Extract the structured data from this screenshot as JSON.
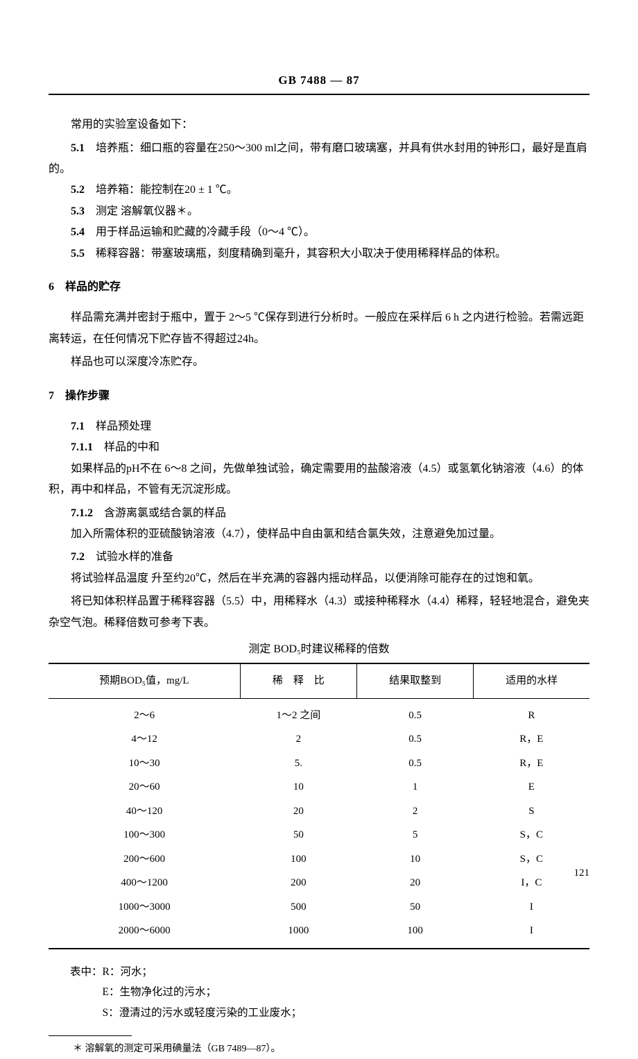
{
  "header": {
    "title": "GB 7488 — 87"
  },
  "intro": "常用的实验室设备如下：",
  "items5": {
    "i1_num": "5.1",
    "i1": "培养瓶：细口瓶的容量在250～300 ml之间，带有磨口玻璃塞，并具有供水封用的钟形口，最好是直肩的。",
    "i2_num": "5.2",
    "i2": "培养箱：能控制在20 ± 1 ℃。",
    "i3_num": "5.3",
    "i3": "测定 溶解氧仪器＊。",
    "i4_num": "5.4",
    "i4": "用于样品运输和贮藏的冷藏手段（0～4 ℃）。",
    "i5_num": "5.5",
    "i5": "稀释容器：带塞玻璃瓶，刻度精确到毫升，其容积大小取决于使用稀释样品的体积。"
  },
  "section6": {
    "heading": "6　样品的贮存",
    "p1": "样品需充满并密封于瓶中，置于 2～5 ℃保存到进行分析时。一般应在采样后 6 h 之内进行检验。若需远距离转运，在任何情况下贮存皆不得超过24h。",
    "p2": "样品也可以深度冷冻贮存。"
  },
  "section7": {
    "heading": "7　操作步骤",
    "s71_num": "7.1",
    "s71": "样品预处理",
    "s711_num": "7.1.1",
    "s711": "样品的中和",
    "s711_p": "如果样品的pH不在 6～8 之间，先做单独试验，确定需要用的盐酸溶液（4.5）或氢氧化钠溶液（4.6）的体积，再中和样品，不管有无沉淀形成。",
    "s712_num": "7.1.2",
    "s712": "含游离氯或结合氯的样品",
    "s712_p": "加入所需体积的亚硫酸钠溶液（4.7），使样品中自由氯和结合氯失效，注意避免加过量。",
    "s72_num": "7.2",
    "s72": "试验水样的准备",
    "s72_p1": "将试验样品温度 升至约20℃，然后在半充满的容器内摇动样品，以便消除可能存在的过饱和氧。",
    "s72_p2": "将已知体积样品置于稀释容器（5.5）中，用稀释水（4.3）或接种稀释水（4.4）稀释，轻轻地混合，避免夹杂空气泡。稀释倍数可参考下表。"
  },
  "table": {
    "title": "测定 BOD₅时建议稀释的倍数",
    "headers": [
      "预期BOD₅值，mg/L",
      "稀　释　比",
      "结果取整到",
      "适用的水样"
    ],
    "rows": [
      [
        "2～6",
        "1～2 之间",
        "0.5",
        "R"
      ],
      [
        "4～12",
        "2",
        "0.5",
        "R，E"
      ],
      [
        "10～30",
        "5.",
        "0.5",
        "R，E"
      ],
      [
        "20～60",
        "10",
        "1",
        "E"
      ],
      [
        "40～120",
        "20",
        "2",
        "S"
      ],
      [
        "100～300",
        "50",
        "5",
        "S，C"
      ],
      [
        "200～600",
        "100",
        "10",
        "S，C"
      ],
      [
        "400～1200",
        "200",
        "20",
        "I，C"
      ],
      [
        "1000～3000",
        "500",
        "50",
        "I"
      ],
      [
        "2000～6000",
        "1000",
        "100",
        "I"
      ]
    ]
  },
  "legend": {
    "intro": "表中：R：河水；",
    "e": "E：生物净化过的污水；",
    "s": "S：澄清过的污水或轻度污染的工业废水；"
  },
  "footnote": "＊ 溶解氧的测定可采用碘量法（GB 7489—87）。",
  "pageNum": "121"
}
